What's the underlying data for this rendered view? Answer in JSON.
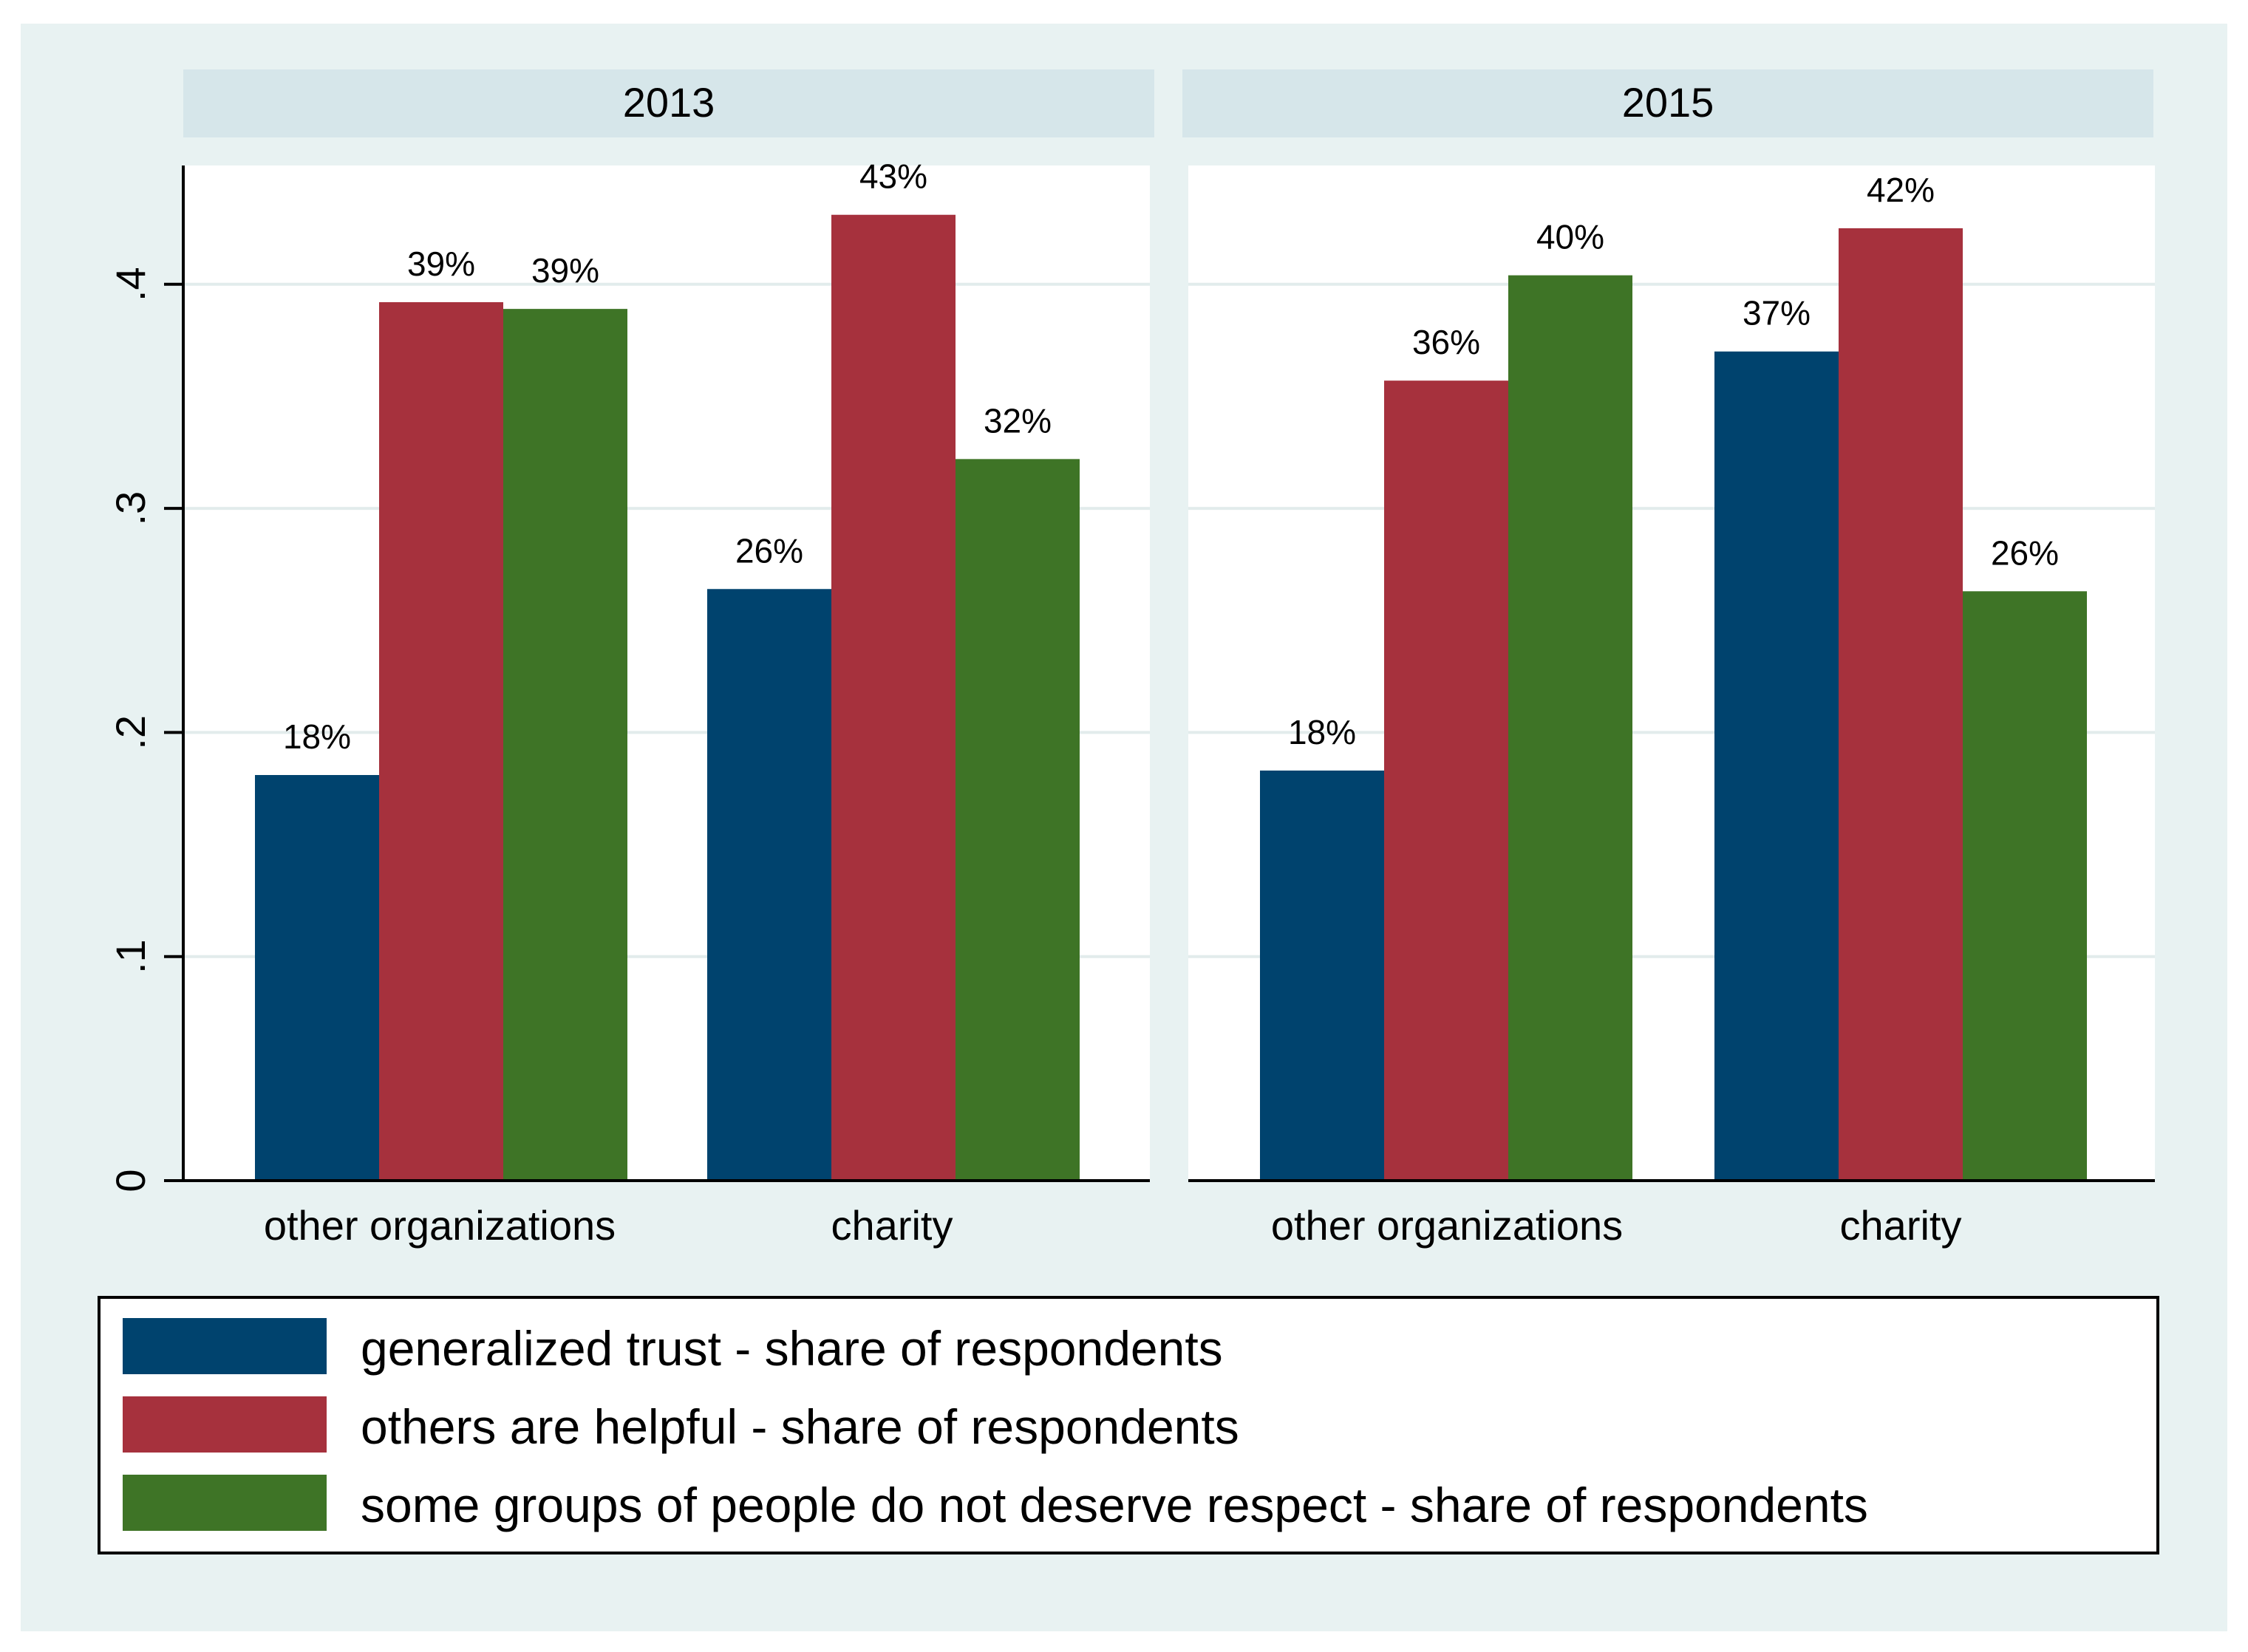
{
  "chart_data": {
    "type": "bar",
    "panels": [
      {
        "title": "2013",
        "categories": [
          "other organizations",
          "charity"
        ],
        "series": [
          {
            "name": "generalized trust - share of respondents",
            "values": [
              0.181,
              0.264
            ]
          },
          {
            "name": "others are helpful - share of respondents",
            "values": [
              0.392,
              0.431
            ]
          },
          {
            "name": "some groups of people do not deserve respect - share of respondents",
            "values": [
              0.389,
              0.322
            ]
          }
        ],
        "data_labels": [
          [
            "18%",
            "26%"
          ],
          [
            "39%",
            "43%"
          ],
          [
            "39%",
            "32%"
          ]
        ]
      },
      {
        "title": "2015",
        "categories": [
          "other organizations",
          "charity"
        ],
        "series": [
          {
            "name": "generalized trust - share of respondents",
            "values": [
              0.183,
              0.37
            ]
          },
          {
            "name": "others are helpful - share of respondents",
            "values": [
              0.357,
              0.425
            ]
          },
          {
            "name": "some groups of people do not deserve respect - share of respondents",
            "values": [
              0.404,
              0.263
            ]
          }
        ],
        "data_labels": [
          [
            "18%",
            "37%"
          ],
          [
            "36%",
            "42%"
          ],
          [
            "40%",
            "26%"
          ]
        ]
      }
    ],
    "yticks": [
      0,
      0.1,
      0.2,
      0.3,
      0.4
    ],
    "ytick_labels": [
      "0",
      ".1",
      ".2",
      ".3",
      ".4"
    ],
    "ylim": [
      0,
      0.453
    ],
    "xlabel": "",
    "ylabel": "",
    "grid": true,
    "legend": {
      "position": "bottom",
      "entries": [
        "generalized trust - share of respondents",
        "others are helpful - share of respondents",
        "some groups of people do not deserve respect - share of respondents"
      ]
    }
  },
  "colors": {
    "outer_bg": "#e8f2f2",
    "plot_bg": "#ffffff",
    "strip_bg": "#d6e6ea",
    "grid": "#e2ecec",
    "axis": "#000000",
    "series": [
      "#00436e",
      "#a6313d",
      "#3e7426"
    ]
  }
}
